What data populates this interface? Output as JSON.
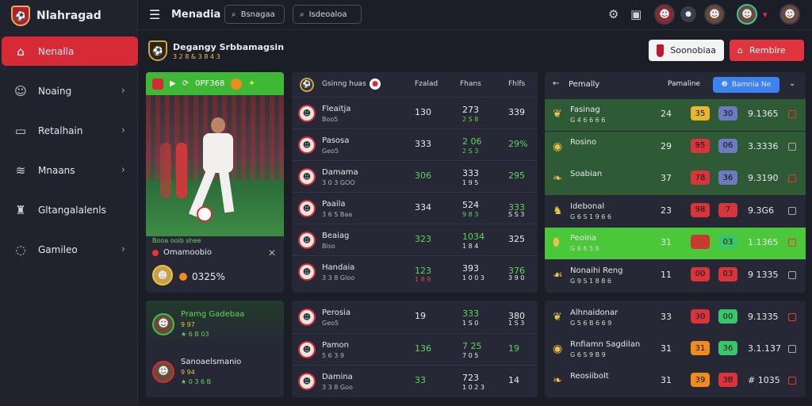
{
  "app": {
    "name": "Nlahragad"
  },
  "sidebar": {
    "items": [
      {
        "label": "Nenalla",
        "icon": "home-icon"
      },
      {
        "label": "Noaing",
        "icon": "users-icon"
      },
      {
        "label": "Retalhain",
        "icon": "calendar-icon"
      },
      {
        "label": "Mnaans",
        "icon": "stack-icon"
      },
      {
        "label": "Gltangalalenls",
        "icon": "trophy-icon"
      },
      {
        "label": "Gamileo",
        "icon": "chat-icon"
      }
    ]
  },
  "topbar": {
    "title": "Menadia",
    "search1": "Bsnagaa",
    "search2": "Isdeoaloa"
  },
  "header": {
    "title": "Degangy Srbbamagsin",
    "subtitle": "3 2 8 & 3 8 4 3",
    "btn_white": "Soonobiaa",
    "btn_red": "Remblre"
  },
  "player": {
    "bar_label": "0PF368",
    "caption": "Booa ooib shee",
    "name": "Omamoobio",
    "pct": "0325%"
  },
  "friends": [
    {
      "name": "Pramg Gadebaa",
      "sub": "9 97",
      "sub2": "★ 6 B 03"
    },
    {
      "name": "Sanoaelsmanio",
      "sub": "9 94",
      "sub2": "★ 0 3 6 B"
    }
  ],
  "table": {
    "title": "Gsinng huas",
    "columns": [
      "Fzalad",
      "Fhans",
      "Fhlfs"
    ],
    "rows": [
      {
        "name": "Fleaitja",
        "sub": "Boo5",
        "v1": "130",
        "v2": "273",
        "v2s": "2 S 8",
        "v2s_color": "green",
        "v3": "339",
        "v3_color": "white"
      },
      {
        "name": "Pasosa",
        "sub": "Geo5",
        "v1": "333",
        "v2": "2 06",
        "v2s": "2 S 3",
        "v2s_color": "green",
        "v2_color": "green",
        "v3": "29%",
        "v3_color": "green"
      },
      {
        "name": "Damama",
        "sub": "3 0 3 GOO",
        "v1": "306",
        "v1_color": "green",
        "v2": "333",
        "v2s": "1 9 5",
        "v2s_color": "white",
        "v3": "295",
        "v3_color": "green"
      },
      {
        "name": "Paaila",
        "sub": "3 6 S Baa",
        "v1": "334",
        "v2": "524",
        "v2s": "9 8 3",
        "v2s_color": "green",
        "v3": "333",
        "v3_color": "green",
        "v3s": "S S 3"
      },
      {
        "name": "Beaiag",
        "sub": "Biso",
        "v1": "323",
        "v1_color": "green",
        "v2": "1034",
        "v2_color": "green",
        "v2s": "1 8 4",
        "v2s_color": "white",
        "v3": "325",
        "v3_color": "white"
      },
      {
        "name": "Handaia",
        "sub": "3 3 8 Gloo",
        "v1": "123",
        "v1_color": "green",
        "v1s": "1 8 9",
        "v2": "393",
        "v2s": "1 0 0 3",
        "v2s_color": "white",
        "v3": "376",
        "v3_color": "green",
        "v3s": "3 9 0"
      }
    ]
  },
  "table2": {
    "rows": [
      {
        "name": "Perosia",
        "sub": "Geo5",
        "v1": "19",
        "v2": "333",
        "v2s": "1 S 0",
        "v2s_color": "white",
        "v2_color": "green",
        "v3": "380",
        "v3s": "1 S 3"
      },
      {
        "name": "Pamon",
        "sub": "5 6 3 9",
        "v1": "136",
        "v1_color": "green",
        "v2": "7 25",
        "v2_color": "green",
        "v2s": "7 0 5",
        "v2s_color": "white",
        "v3": "19",
        "v3_color": "green"
      },
      {
        "name": "Damina",
        "sub": "3 3 8 Goo",
        "v1": "33",
        "v1_color": "green",
        "v2": "723",
        "v2s": "1 0 2 3",
        "v2s_color": "white",
        "v3": "14",
        "v3_color": "white"
      }
    ]
  },
  "right": {
    "title": "Pemally",
    "col_label": "Pamaline",
    "tab": "Bamnia Ne",
    "rows": [
      {
        "name": "Fasinag",
        "sub": "G 4 6 6 6 6",
        "num": "24",
        "pill1": "35",
        "pill1_color": "#e8b62c",
        "pill2": "30",
        "pill2_color": "#6c7bbf",
        "val": "9.1365",
        "bg": "#2e5a36"
      },
      {
        "name": "Rosino",
        "sub": "",
        "num": "29",
        "pill1": "95",
        "pill1_color": "#d8343c",
        "pill2": "06",
        "pill2_color": "#6c7bbf",
        "val": "3.3336",
        "bg": "#2e5a36"
      },
      {
        "name": "Soabian",
        "sub": "",
        "num": "37",
        "pill1": "78",
        "pill1_color": "#d8343c",
        "pill2": "36",
        "pill2_color": "#6c7bbf",
        "val": "9.3190",
        "bg": "#2e5a36"
      },
      {
        "name": "Idebonal",
        "sub": "G 6 S 1 9 6 6",
        "num": "23",
        "pill1": "98",
        "pill1_color": "#d8343c",
        "pill2": "7",
        "pill2_color": "#d8343c",
        "val": "9.3G6",
        "bg": "#262836"
      },
      {
        "name": "Peoina",
        "sub": "G 6 6 5 6",
        "num": "31",
        "pill1": "",
        "pill1_color": "#c63a30",
        "pill2": "03",
        "pill2_color": "#39c56a",
        "val": "1.1365",
        "bg": "#4bc83a"
      },
      {
        "name": "Nonaihi Reng",
        "sub": "G 9 S 1 8 8 6",
        "num": "11",
        "pill1": "00",
        "pill1_color": "#d8343c",
        "pill2": "03",
        "pill2_color": "#d8343c",
        "val": "9 1335",
        "bg": "#262836"
      }
    ]
  },
  "right2": {
    "rows": [
      {
        "name": "Alhnaidonar",
        "sub": "G 5 6 B 6 6 9",
        "num": "33",
        "pill1": "30",
        "pill1_color": "#d8343c",
        "pill2": "00",
        "pill2_color": "#39c56a",
        "val": "9.1335"
      },
      {
        "name": "Rnfiamn Sagdilan",
        "sub": "G 6 S 9 B 9",
        "num": "31",
        "pill1": "31",
        "pill1_color": "#f08b1c",
        "pill2": "36",
        "pill2_color": "#39c56a",
        "val": "3.1.137"
      },
      {
        "name": "Reosiibolt",
        "sub": "",
        "num": "31",
        "pill1": "39",
        "pill1_color": "#f08b1c",
        "pill2": "3B",
        "pill2_color": "#d8343c",
        "val": "# 1035"
      }
    ]
  },
  "colors": {
    "accent": "#d62a36",
    "green": "#3fb935",
    "panel": "#262836"
  }
}
